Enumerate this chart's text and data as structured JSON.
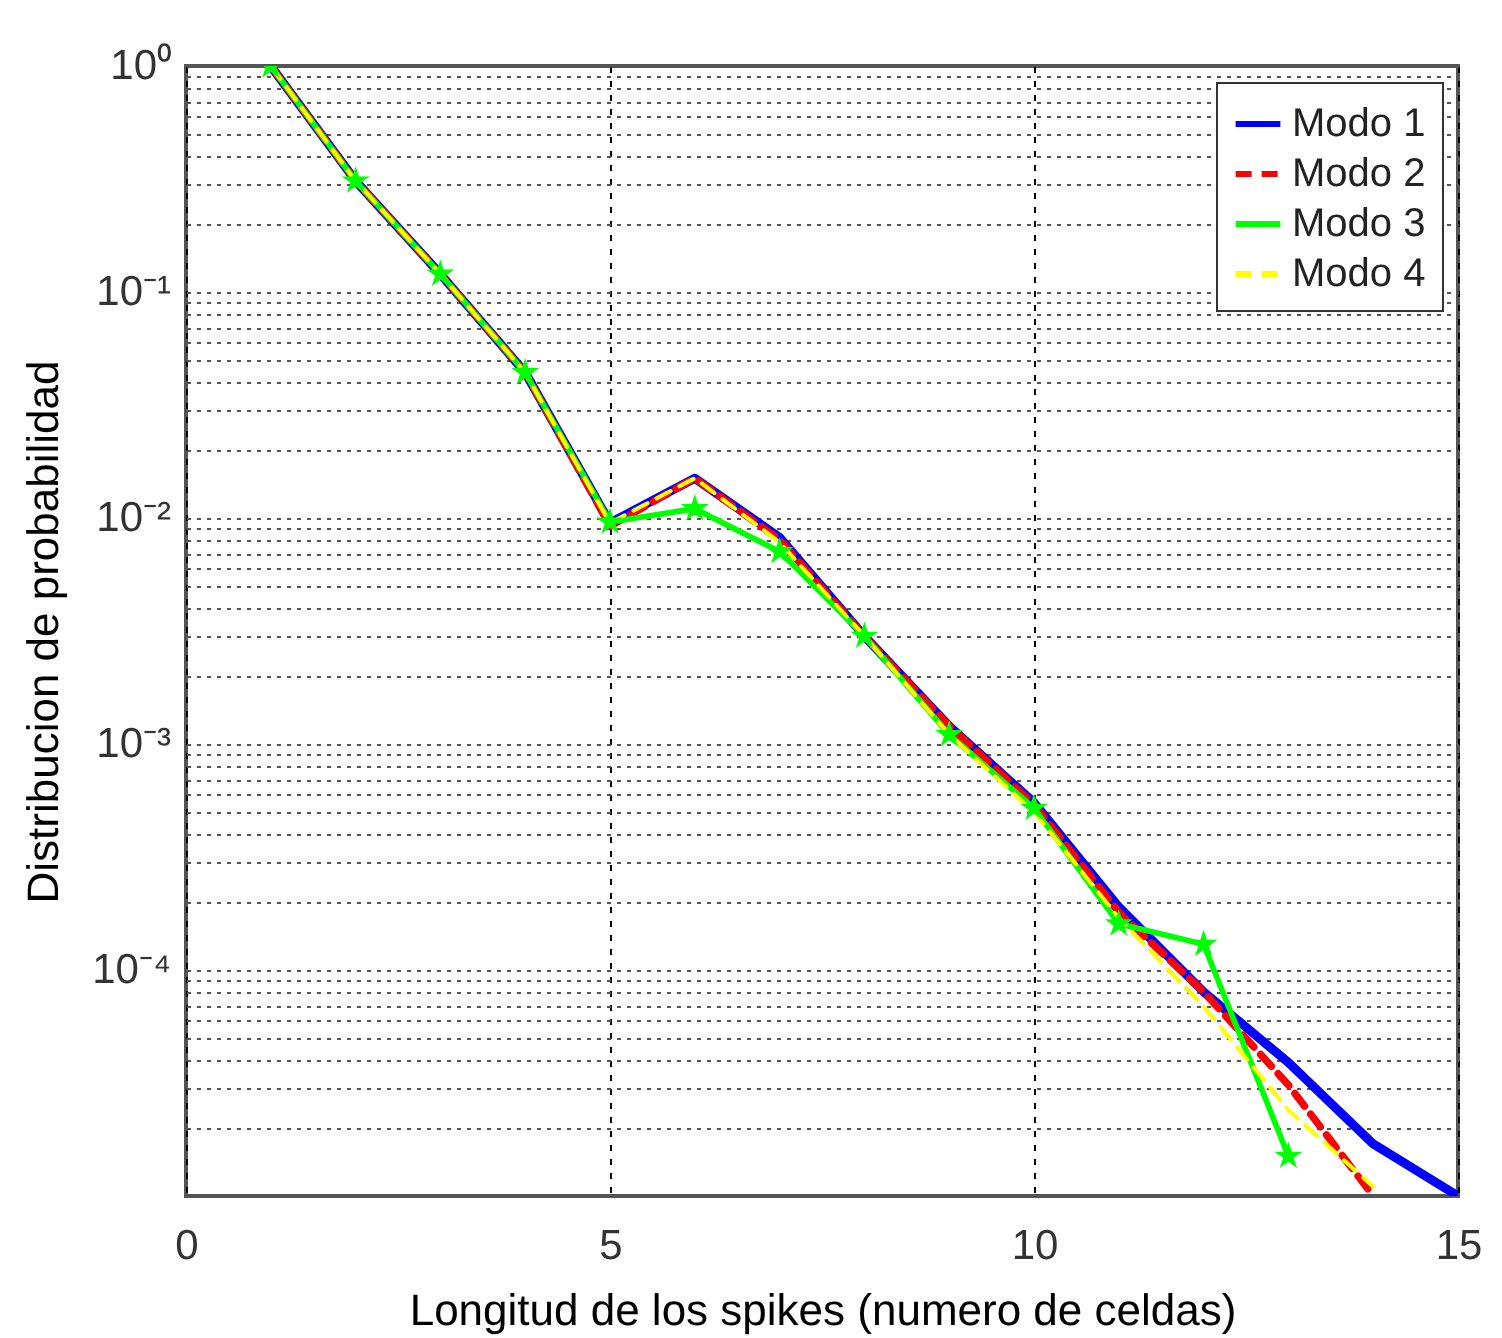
{
  "chart_data": {
    "type": "line",
    "xlabel": "Longitud de los spikes (numero de celdas)",
    "ylabel": "Distribucion de probabilidad",
    "log": "y",
    "grid": true,
    "legend": "top right",
    "xlim": [
      0,
      15
    ],
    "xticks": [
      0,
      5,
      10,
      15
    ],
    "ylim": [
      1e-05,
      1
    ],
    "yticks": [
      {
        "value": 1e-05,
        "label": null
      },
      {
        "value": 2e-05,
        "label": null
      },
      {
        "value": 3e-05,
        "label": null
      },
      {
        "value": 4e-05,
        "label": null
      },
      {
        "value": 5e-05,
        "label": null
      },
      {
        "value": 6e-05,
        "label": null
      },
      {
        "value": 7e-05,
        "label": null
      },
      {
        "value": 8e-05,
        "label": null
      },
      {
        "value": 9e-05,
        "label": null
      },
      {
        "value": 0.0001,
        "label": "10⁻⁴"
      },
      {
        "value": 0.0002,
        "label": null
      },
      {
        "value": 0.0003,
        "label": null
      },
      {
        "value": 0.0004,
        "label": null
      },
      {
        "value": 0.0005,
        "label": null
      },
      {
        "value": 0.0006,
        "label": null
      },
      {
        "value": 0.0007,
        "label": null
      },
      {
        "value": 0.0008,
        "label": null
      },
      {
        "value": 0.0009,
        "label": null
      },
      {
        "value": 0.001,
        "label": "10⁻³"
      },
      {
        "value": 0.002,
        "label": null
      },
      {
        "value": 0.003,
        "label": null
      },
      {
        "value": 0.004,
        "label": null
      },
      {
        "value": 0.005,
        "label": null
      },
      {
        "value": 0.006,
        "label": null
      },
      {
        "value": 0.007,
        "label": null
      },
      {
        "value": 0.008,
        "label": null
      },
      {
        "value": 0.009,
        "label": null
      },
      {
        "value": 0.01,
        "label": "10⁻²"
      },
      {
        "value": 0.02,
        "label": null
      },
      {
        "value": 0.03,
        "label": null
      },
      {
        "value": 0.04,
        "label": null
      },
      {
        "value": 0.05,
        "label": null
      },
      {
        "value": 0.06,
        "label": null
      },
      {
        "value": 0.07,
        "label": null
      },
      {
        "value": 0.08,
        "label": null
      },
      {
        "value": 0.09,
        "label": null
      },
      {
        "value": 0.1,
        "label": "10⁻¹"
      },
      {
        "value": 0.2,
        "label": null
      },
      {
        "value": 0.3,
        "label": null
      },
      {
        "value": 0.4,
        "label": null
      },
      {
        "value": 0.5,
        "label": null
      },
      {
        "value": 0.6,
        "label": null
      },
      {
        "value": 0.7,
        "label": null
      },
      {
        "value": 0.8,
        "label": null
      },
      {
        "value": 0.9,
        "label": null
      },
      {
        "value": 1,
        "label": "10⁰"
      }
    ],
    "x": [
      1,
      2,
      3,
      4,
      5,
      6,
      7,
      8,
      9,
      10,
      11,
      12,
      13,
      14,
      15
    ],
    "series": [
      {
        "name": "Modo 1",
        "color": "#0000ff",
        "line_style": "solid",
        "values": [
          1,
          0.31,
          0.12,
          0.044,
          0.0095,
          0.015,
          0.0082,
          0.003,
          0.0012,
          0.00055,
          0.00019,
          8e-05,
          3.9e-05,
          1.7e-05,
          1e-05
        ]
      },
      {
        "name": "Modo 2",
        "color": "#ff0000",
        "line_style": "dashed",
        "values": [
          1,
          0.31,
          0.12,
          0.044,
          0.0092,
          0.015,
          0.008,
          0.003,
          0.0012,
          0.00054,
          0.00018,
          8e-05,
          3.1e-05,
          1e-05,
          null
        ]
      },
      {
        "name": "Modo 3",
        "color": "#00ff00",
        "line_style": "solid",
        "marker": "star",
        "values": [
          1,
          0.31,
          0.12,
          0.044,
          0.0096,
          0.011,
          0.0071,
          0.003,
          0.0011,
          0.00052,
          0.00016,
          0.00013,
          1.5e-05,
          null,
          null
        ]
      },
      {
        "name": "Modo 4",
        "color": "#ffff00",
        "line_style": "dashed",
        "values": [
          1,
          0.31,
          0.12,
          0.044,
          0.0095,
          0.015,
          0.0078,
          0.003,
          0.0011,
          0.0005,
          0.00017,
          6.9e-05,
          2.4e-05,
          1.1e-05,
          null
        ]
      }
    ]
  }
}
